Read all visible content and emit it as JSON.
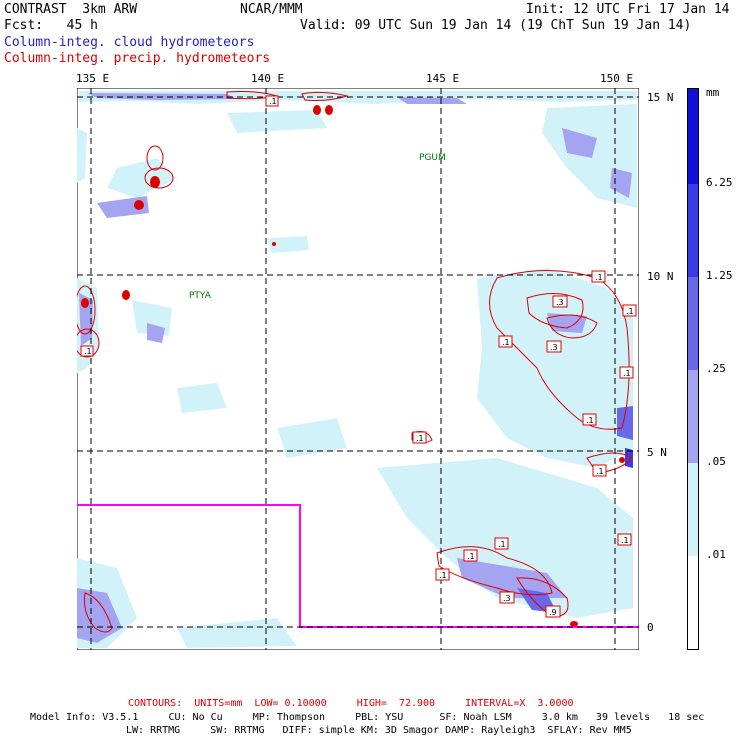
{
  "header": {
    "model": "CONTRAST  3km ARW",
    "org": "NCAR/MMM",
    "init": "Init: 12 UTC Fri 17 Jan 14",
    "fcst": "Fcst:   45 h",
    "valid": "Valid: 09 UTC Sun 19 Jan 14 (19 ChT Sun 19 Jan 14)",
    "field_blue": "Column-integ. cloud hydrometeors",
    "field_red": "Column-integ. precip. hydrometeors"
  },
  "map": {
    "lon_labels": [
      "135 E",
      "140 E",
      "145 E",
      "150 E"
    ],
    "lat_labels": [
      "15 N",
      "10 N",
      "5 N",
      "0"
    ],
    "stations": [
      "PGUM",
      "PTYA"
    ],
    "contour_labels": [
      ".1",
      ".1",
      ".1",
      ".1",
      ".3",
      ".1",
      ".3",
      ".1",
      ".1",
      ".1",
      ".1",
      ".1",
      ".1",
      ".1",
      ".1",
      ".3",
      ".9"
    ]
  },
  "colorbar": {
    "unit": "mm",
    "levels": [
      "6.25",
      "1.25",
      ".25",
      ".05",
      ".01"
    ],
    "colors": [
      "#1010d8",
      "#3a3ae6",
      "#6868e8",
      "#a4a4f0",
      "#d2f2fa",
      "#ffffff"
    ]
  },
  "footer": {
    "contours": "CONTOURS:  UNITS=mm  LOW= 0.10000     HIGH=  72.900     INTERVAL=X  3.0000",
    "model_info_1": "Model Info: V3.5.1     CU: No Cu     MP: Thompson     PBL: YSU      SF: Noah LSM     3.0 km   39 levels   18 sec",
    "model_info_2": "LW: RRTMG     SW: RRTMG   DIFF: simple KM: 3D Smagor DAMP: Rayleigh3  SFLAY: Rev MM5"
  }
}
